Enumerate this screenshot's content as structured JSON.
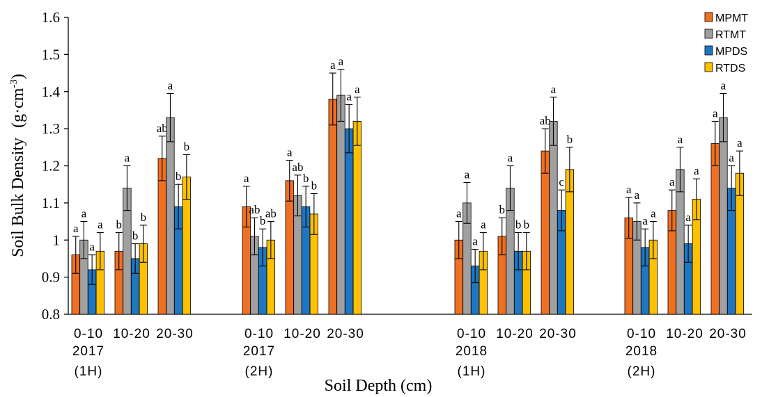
{
  "chart_data": {
    "type": "bar",
    "ylabel_main": "Soil Bulk Density",
    "ylabel_unit_base": "(g·cm",
    "ylabel_unit_sup": "-3",
    "ylabel_unit_close": ")",
    "xlabel": "Soil Depth (cm)",
    "ylim": [
      0.8,
      1.6
    ],
    "yticks": [
      "0.8",
      "0.9",
      "1",
      "1.1",
      "1.2",
      "1.3",
      "1.4",
      "1.5",
      "1.6"
    ],
    "legend_position": "top-right",
    "series": [
      {
        "name": "MPMT",
        "color": "#F07022"
      },
      {
        "name": "RTMT",
        "color": "#A0A0A0"
      },
      {
        "name": "MPDS",
        "color": "#1F77C4"
      },
      {
        "name": "RTDS",
        "color": "#FFC000"
      }
    ],
    "groups": [
      {
        "period_line1": "2017",
        "period_line2": "(1H)",
        "depths": [
          {
            "label": "0-10",
            "values": [
              0.96,
              1.0,
              0.92,
              0.97
            ],
            "errors": [
              0.05,
              0.05,
              0.04,
              0.05
            ],
            "sig": [
              "a",
              "a",
              "a",
              "a"
            ]
          },
          {
            "label": "10-20",
            "values": [
              0.97,
              1.14,
              0.95,
              0.99
            ],
            "errors": [
              0.05,
              0.06,
              0.04,
              0.05
            ],
            "sig": [
              "b",
              "a",
              "b",
              "b"
            ]
          },
          {
            "label": "20-30",
            "values": [
              1.22,
              1.33,
              1.09,
              1.17
            ],
            "errors": [
              0.06,
              0.065,
              0.06,
              0.06
            ],
            "sig": [
              "ab",
              "a",
              "b",
              "b"
            ]
          }
        ]
      },
      {
        "period_line1": "2017",
        "period_line2": "(2H)",
        "depths": [
          {
            "label": "0-10",
            "values": [
              1.09,
              1.01,
              0.98,
              1.0
            ],
            "errors": [
              0.055,
              0.05,
              0.05,
              0.05
            ],
            "sig": [
              "a",
              "ab",
              "b",
              "ab"
            ]
          },
          {
            "label": "10-20",
            "values": [
              1.16,
              1.12,
              1.09,
              1.07
            ],
            "errors": [
              0.055,
              0.055,
              0.055,
              0.055
            ],
            "sig": [
              "a",
              "ab",
              "b",
              "b"
            ]
          },
          {
            "label": "20-30",
            "values": [
              1.38,
              1.39,
              1.3,
              1.32
            ],
            "errors": [
              0.07,
              0.07,
              0.065,
              0.065
            ],
            "sig": [
              "a",
              "a",
              "a",
              "a"
            ]
          }
        ]
      },
      {
        "period_line1": "2018",
        "period_line2": "(1H)",
        "depths": [
          {
            "label": "0-10",
            "values": [
              1.0,
              1.1,
              0.93,
              0.97
            ],
            "errors": [
              0.05,
              0.055,
              0.045,
              0.05
            ],
            "sig": [
              "a",
              "a",
              "a",
              "a"
            ]
          },
          {
            "label": "10-20",
            "values": [
              1.01,
              1.14,
              0.97,
              0.97
            ],
            "errors": [
              0.05,
              0.06,
              0.05,
              0.05
            ],
            "sig": [
              "b",
              "a",
              "b",
              "b"
            ]
          },
          {
            "label": "20-30",
            "values": [
              1.24,
              1.32,
              1.08,
              1.19
            ],
            "errors": [
              0.06,
              0.065,
              0.055,
              0.06
            ],
            "sig": [
              "ab",
              "a",
              "c",
              "b"
            ]
          }
        ]
      },
      {
        "period_line1": "2018",
        "period_line2": "(2H)",
        "depths": [
          {
            "label": "0-10",
            "values": [
              1.06,
              1.05,
              0.98,
              1.0
            ],
            "errors": [
              0.055,
              0.05,
              0.05,
              0.05
            ],
            "sig": [
              "a",
              "a",
              "a",
              "a"
            ]
          },
          {
            "label": "10-20",
            "values": [
              1.08,
              1.19,
              0.99,
              1.11
            ],
            "errors": [
              0.055,
              0.06,
              0.05,
              0.055
            ],
            "sig": [
              "a",
              "a",
              "a",
              "a"
            ]
          },
          {
            "label": "20-30",
            "values": [
              1.26,
              1.33,
              1.14,
              1.18
            ],
            "errors": [
              0.06,
              0.065,
              0.06,
              0.06
            ],
            "sig": [
              "a",
              "a",
              "a",
              "a"
            ]
          }
        ]
      }
    ]
  }
}
